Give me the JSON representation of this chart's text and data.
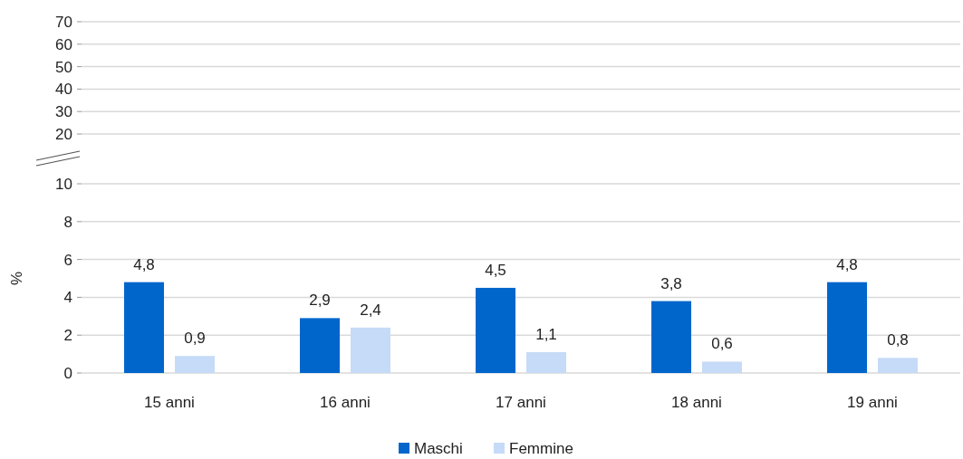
{
  "chart_data": [
    {
      "type": "bar",
      "categories": [
        null,
        null,
        null,
        null,
        null
      ],
      "values": [
        null,
        null,
        null,
        null,
        null
      ],
      "ylim": [
        20,
        70
      ],
      "yticks": [
        20,
        30,
        40,
        50,
        60,
        70
      ],
      "grid": "y",
      "tick_labels": "y"
    },
    {
      "type": "bar",
      "ylabel": "%",
      "categories": [
        "15 anni",
        "16 anni",
        "17 anni",
        "18 anni",
        "19 anni"
      ],
      "series": [
        {
          "name": "Maschi",
          "color": "#0066cc",
          "values": [
            4.8,
            2.9,
            4.5,
            3.8,
            4.8
          ],
          "value_labels": [
            "4,8",
            "2,9",
            "4,5",
            "3,8",
            "4,8"
          ]
        },
        {
          "name": "Femmine",
          "color": "#c6dbf7",
          "values": [
            0.9,
            2.4,
            1.1,
            0.6,
            0.8
          ],
          "value_labels": [
            "0,9",
            "2,4",
            "1,1",
            "0,6",
            "0,8"
          ]
        }
      ],
      "ylim": [
        0,
        10
      ],
      "yticks": [
        0,
        2,
        4,
        6,
        8,
        10
      ],
      "grid": "y",
      "legend": "bottom"
    }
  ]
}
